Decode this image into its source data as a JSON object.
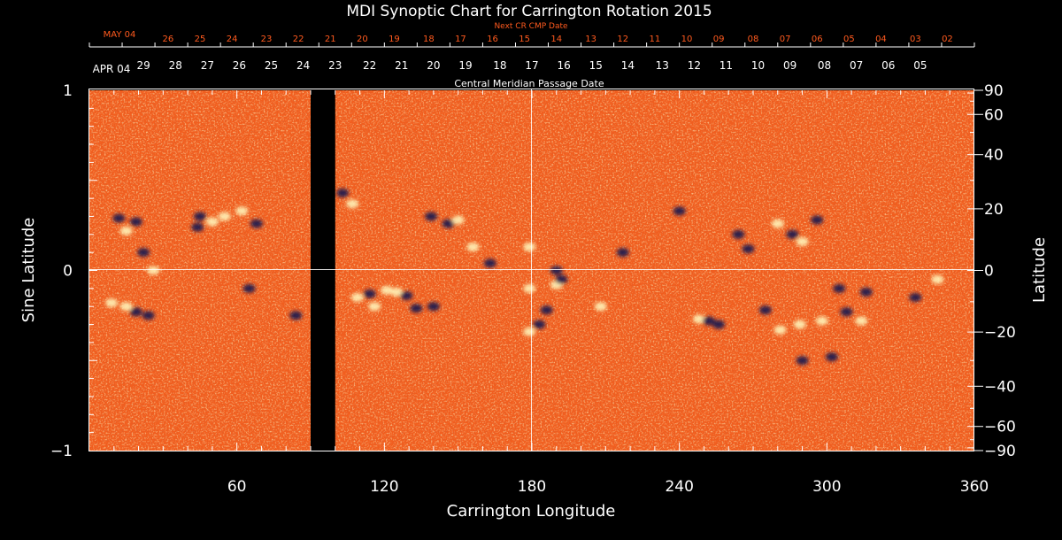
{
  "colors": {
    "background": "#000000",
    "field_base": "#f25e1e",
    "positive_polarity": "#fff3b8",
    "negative_polarity": "#1b1650",
    "next_cr_text": "#ff5a1e",
    "axis": "#ffffff"
  },
  "chart_data": {
    "type": "heatmap",
    "title": "MDI Synoptic Chart for Carrington Rotation 2015",
    "xlabel": "Carrington Longitude",
    "ylabel_left": "Sine Latitude",
    "ylabel_right": "Latitude",
    "xlim": [
      0,
      360
    ],
    "ylim": [
      -1,
      1
    ],
    "x_ticks": [
      60,
      120,
      180,
      240,
      300,
      360
    ],
    "x_tick_labels": [
      "60",
      "120",
      "180",
      "240",
      "300",
      "360"
    ],
    "y_left_ticks": [
      1,
      0,
      -1
    ],
    "y_left_tick_labels": [
      "1",
      "0",
      "−1"
    ],
    "y_right_ticks_deg": [
      90,
      60,
      40,
      20,
      0,
      -20,
      -40,
      -60,
      -90
    ],
    "y_right_tick_labels": [
      "90",
      "60",
      "40",
      "20",
      "0",
      "−20",
      "−40",
      "−60",
      "−90"
    ],
    "data_gap_longitude": [
      90,
      100
    ],
    "crosshair": {
      "longitude": 180,
      "sine_latitude": 0
    },
    "cmp_date_axis": {
      "label": "Central Meridian Passage Date",
      "start_label": "APR 04",
      "labels": [
        "29",
        "28",
        "27",
        "26",
        "25",
        "24",
        "23",
        "22",
        "21",
        "20",
        "19",
        "18",
        "17",
        "16",
        "15",
        "14",
        "13",
        "12",
        "11",
        "10",
        "09",
        "08",
        "07",
        "06",
        "05"
      ],
      "label_longitudes": [
        22,
        35,
        48,
        61,
        74,
        87,
        100,
        114,
        127,
        140,
        153,
        167,
        180,
        193,
        206,
        219,
        233,
        246,
        259,
        272,
        285,
        299,
        312,
        325,
        338
      ]
    },
    "next_cr_axis": {
      "label": "Next CR CMP Date",
      "start_label": "MAY 04",
      "labels": [
        "26",
        "25",
        "24",
        "23",
        "22",
        "21",
        "20",
        "19",
        "18",
        "17",
        "16",
        "15",
        "14",
        "13",
        "12",
        "11",
        "10",
        "09",
        "08",
        "07",
        "06",
        "05",
        "04",
        "03",
        "02"
      ],
      "label_longitudes": [
        32,
        45,
        58,
        72,
        85,
        98,
        111,
        124,
        138,
        151,
        164,
        177,
        190,
        204,
        217,
        230,
        243,
        256,
        270,
        283,
        296,
        309,
        322,
        336,
        349
      ]
    },
    "active_regions": [
      {
        "lon": 12,
        "sinlat": 0.29,
        "pol": -1
      },
      {
        "lon": 15,
        "sinlat": 0.22,
        "pol": 1
      },
      {
        "lon": 19,
        "sinlat": 0.27,
        "pol": -1
      },
      {
        "lon": 22,
        "sinlat": 0.1,
        "pol": -1
      },
      {
        "lon": 9,
        "sinlat": -0.18,
        "pol": 1
      },
      {
        "lon": 15,
        "sinlat": -0.2,
        "pol": 1
      },
      {
        "lon": 19,
        "sinlat": -0.23,
        "pol": -1
      },
      {
        "lon": 24,
        "sinlat": -0.25,
        "pol": -1
      },
      {
        "lon": 26,
        "sinlat": 0.0,
        "pol": 1
      },
      {
        "lon": 44,
        "sinlat": 0.24,
        "pol": -1
      },
      {
        "lon": 45,
        "sinlat": 0.3,
        "pol": -1
      },
      {
        "lon": 50,
        "sinlat": 0.27,
        "pol": 1
      },
      {
        "lon": 55,
        "sinlat": 0.3,
        "pol": 1
      },
      {
        "lon": 62,
        "sinlat": 0.33,
        "pol": 1
      },
      {
        "lon": 68,
        "sinlat": 0.26,
        "pol": -1
      },
      {
        "lon": 65,
        "sinlat": -0.1,
        "pol": -1
      },
      {
        "lon": 84,
        "sinlat": -0.25,
        "pol": -1
      },
      {
        "lon": 103,
        "sinlat": 0.43,
        "pol": -1
      },
      {
        "lon": 107,
        "sinlat": 0.37,
        "pol": 1
      },
      {
        "lon": 109,
        "sinlat": -0.15,
        "pol": 1
      },
      {
        "lon": 114,
        "sinlat": -0.13,
        "pol": -1
      },
      {
        "lon": 116,
        "sinlat": -0.2,
        "pol": 1
      },
      {
        "lon": 121,
        "sinlat": -0.11,
        "pol": 1
      },
      {
        "lon": 125,
        "sinlat": -0.12,
        "pol": 1
      },
      {
        "lon": 129,
        "sinlat": -0.14,
        "pol": -1
      },
      {
        "lon": 133,
        "sinlat": -0.21,
        "pol": -1
      },
      {
        "lon": 140,
        "sinlat": -0.2,
        "pol": -1
      },
      {
        "lon": 139,
        "sinlat": 0.3,
        "pol": -1
      },
      {
        "lon": 146,
        "sinlat": 0.26,
        "pol": -1
      },
      {
        "lon": 150,
        "sinlat": 0.28,
        "pol": 1
      },
      {
        "lon": 156,
        "sinlat": 0.13,
        "pol": 1
      },
      {
        "lon": 163,
        "sinlat": 0.04,
        "pol": -1
      },
      {
        "lon": 179,
        "sinlat": 0.13,
        "pol": 1
      },
      {
        "lon": 179,
        "sinlat": -0.1,
        "pol": 1
      },
      {
        "lon": 179,
        "sinlat": -0.34,
        "pol": 1
      },
      {
        "lon": 183,
        "sinlat": -0.3,
        "pol": -1
      },
      {
        "lon": 186,
        "sinlat": -0.22,
        "pol": -1
      },
      {
        "lon": 190,
        "sinlat": -0.08,
        "pol": 1
      },
      {
        "lon": 192,
        "sinlat": -0.05,
        "pol": -1
      },
      {
        "lon": 190,
        "sinlat": 0.0,
        "pol": -1
      },
      {
        "lon": 208,
        "sinlat": -0.2,
        "pol": 1
      },
      {
        "lon": 217,
        "sinlat": 0.1,
        "pol": -1
      },
      {
        "lon": 240,
        "sinlat": 0.33,
        "pol": -1
      },
      {
        "lon": 248,
        "sinlat": -0.27,
        "pol": 1
      },
      {
        "lon": 252,
        "sinlat": -0.28,
        "pol": -1
      },
      {
        "lon": 256,
        "sinlat": -0.3,
        "pol": -1
      },
      {
        "lon": 264,
        "sinlat": 0.2,
        "pol": -1
      },
      {
        "lon": 268,
        "sinlat": 0.12,
        "pol": -1
      },
      {
        "lon": 280,
        "sinlat": 0.26,
        "pol": 1
      },
      {
        "lon": 286,
        "sinlat": 0.2,
        "pol": -1
      },
      {
        "lon": 290,
        "sinlat": 0.16,
        "pol": 1
      },
      {
        "lon": 296,
        "sinlat": 0.28,
        "pol": -1
      },
      {
        "lon": 275,
        "sinlat": -0.22,
        "pol": -1
      },
      {
        "lon": 281,
        "sinlat": -0.33,
        "pol": 1
      },
      {
        "lon": 289,
        "sinlat": -0.3,
        "pol": 1
      },
      {
        "lon": 298,
        "sinlat": -0.28,
        "pol": 1
      },
      {
        "lon": 308,
        "sinlat": -0.23,
        "pol": -1
      },
      {
        "lon": 314,
        "sinlat": -0.28,
        "pol": 1
      },
      {
        "lon": 305,
        "sinlat": -0.1,
        "pol": -1
      },
      {
        "lon": 316,
        "sinlat": -0.12,
        "pol": -1
      },
      {
        "lon": 302,
        "sinlat": -0.48,
        "pol": -1
      },
      {
        "lon": 290,
        "sinlat": -0.5,
        "pol": -1
      },
      {
        "lon": 336,
        "sinlat": -0.15,
        "pol": -1
      },
      {
        "lon": 345,
        "sinlat": -0.05,
        "pol": 1
      }
    ]
  }
}
